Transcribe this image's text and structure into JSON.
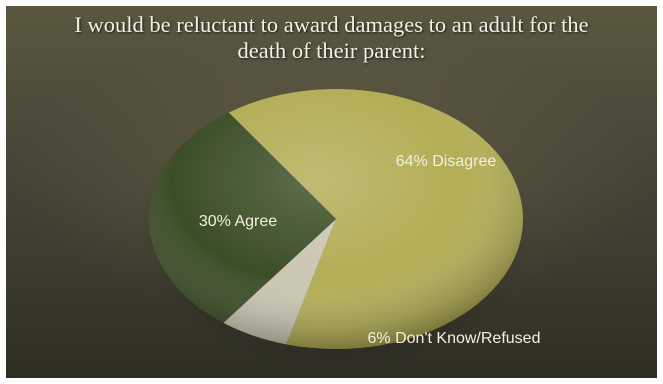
{
  "chart_data": {
    "type": "pie",
    "title_lines": [
      "I would be reluctant to award damages to an adult for the",
      "death of their parent:"
    ],
    "slices": [
      {
        "label": "64% Disagree",
        "value": 64,
        "color": "#b3ad55"
      },
      {
        "label": "6% Don't Know/Refused",
        "value": 6,
        "color": "#c9c6b2"
      },
      {
        "label": "30% Agree",
        "value": 30,
        "color": "#3c4e27"
      }
    ]
  }
}
